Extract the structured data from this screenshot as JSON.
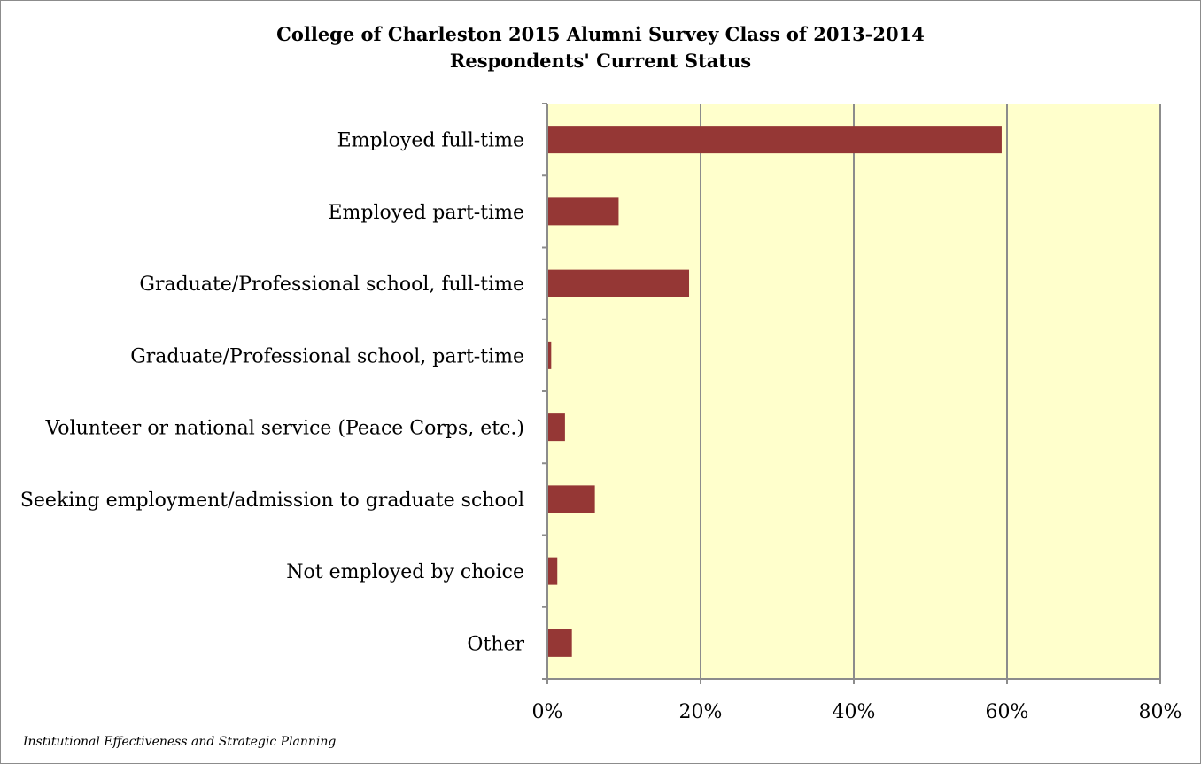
{
  "chart_data": {
    "type": "bar",
    "orientation": "horizontal",
    "title": "College of Charleston 2015 Alumni Survey Class of 2013-2014",
    "subtitle": "Respondents' Current Status",
    "categories": [
      "Employed full-time",
      "Employed part-time",
      "Graduate/Professional school, full-time",
      "Graduate/Professional school, part-time",
      "Volunteer or national service (Peace Corps, etc.)",
      "Seeking employment/admission to graduate school",
      "Not employed by choice",
      "Other"
    ],
    "values": [
      59.3,
      9.3,
      18.5,
      0.5,
      2.3,
      6.2,
      1.3,
      3.2
    ],
    "x_ticks": [
      "0%",
      "20%",
      "40%",
      "60%",
      "80%"
    ],
    "xlim": [
      0,
      80
    ],
    "grid": true,
    "plot_background": "#ffffcc",
    "bar_color": "#953735",
    "xlabel": "",
    "ylabel": ""
  },
  "footer": "Institutional Effectiveness and Strategic Planning"
}
